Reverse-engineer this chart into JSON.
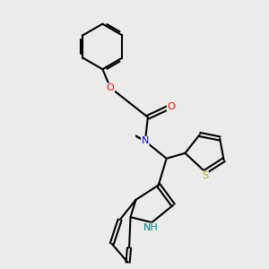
{
  "bg_color": "#ebebeb",
  "bond_color": "#000000",
  "bond_width": 1.5,
  "atom_colors": {
    "N": "#0000ff",
    "O": "#ff0000",
    "S": "#bbaa00",
    "NH": "#008080"
  },
  "font_size": 8
}
